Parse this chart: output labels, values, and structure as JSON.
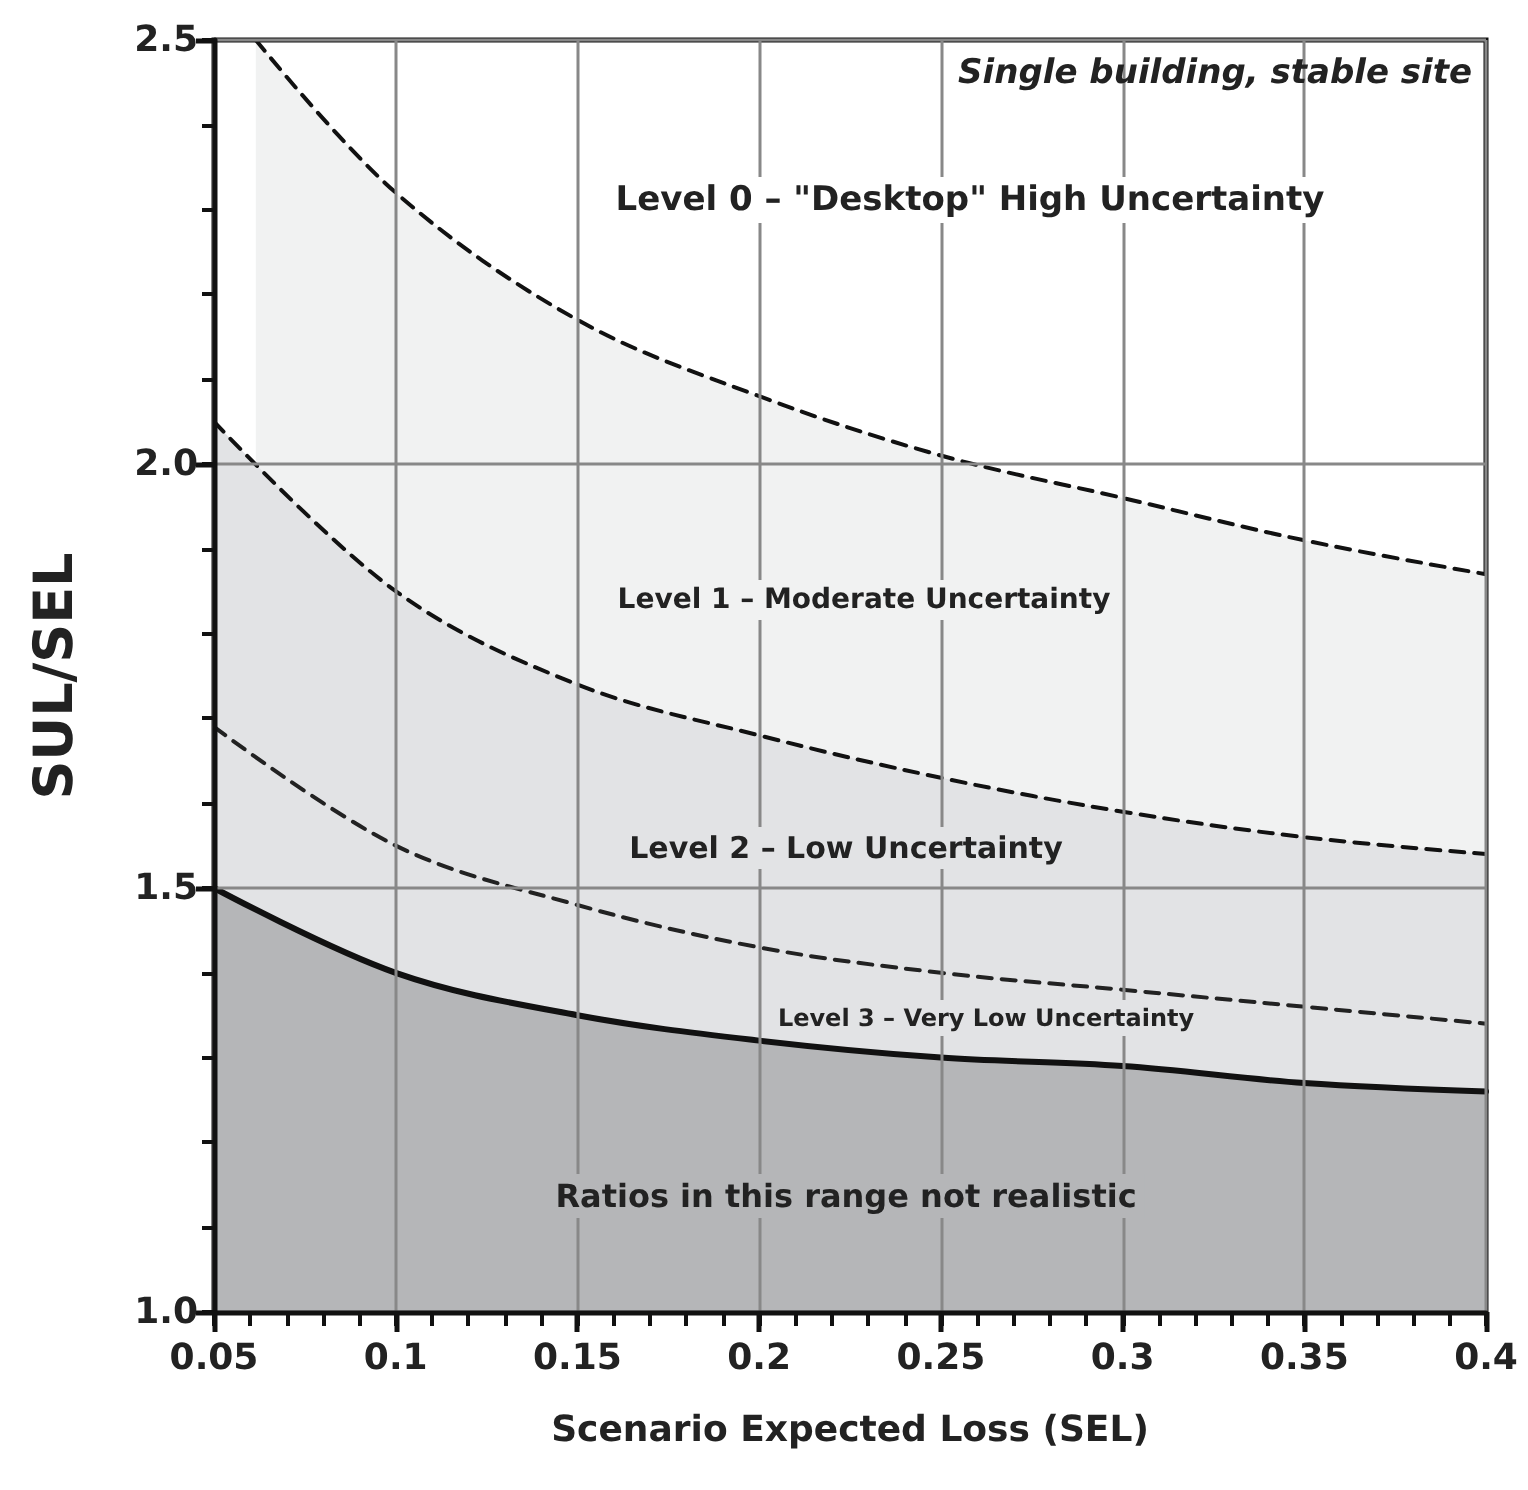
{
  "chart_data": {
    "type": "area",
    "xlabel": "Scenario Expected Loss (SEL)",
    "ylabel": "SUL/SEL",
    "x": [
      0.05,
      0.1,
      0.15,
      0.2,
      0.25,
      0.3,
      0.35,
      0.4
    ],
    "series": [
      {
        "color": "#f1f2f2",
        "line_style": "dashed",
        "x": [
          0.0615,
          0.1,
          0.15,
          0.2,
          0.25,
          0.3,
          0.35,
          0.4
        ],
        "values": [
          2.5,
          2.32,
          2.17,
          2.08,
          2.01,
          1.96,
          1.91,
          1.87
        ]
      },
      {
        "color": "#e2e3e5",
        "line_style": "dashed",
        "values": [
          2.05,
          1.85,
          1.74,
          1.68,
          1.63,
          1.59,
          1.56,
          1.54
        ]
      },
      {
        "type": "line",
        "color": "#222222",
        "line_style": "dashed",
        "values": [
          1.69,
          1.55,
          1.48,
          1.43,
          1.4,
          1.38,
          1.36,
          1.34
        ]
      },
      {
        "color": "#b5b6b8",
        "line_style": "solid",
        "values": [
          1.5,
          1.4,
          1.35,
          1.32,
          1.3,
          1.29,
          1.27,
          1.26
        ]
      }
    ],
    "xlim": [
      0.05,
      0.4
    ],
    "xticks": [
      0.05,
      {
        "value": 0.06,
        "label": null
      },
      {
        "value": 0.07,
        "label": null
      },
      {
        "value": 0.08,
        "label": null
      },
      {
        "value": 0.09,
        "label": null
      },
      0.1,
      {
        "value": 0.11,
        "label": null
      },
      {
        "value": 0.12,
        "label": null
      },
      {
        "value": 0.13,
        "label": null
      },
      {
        "value": 0.14,
        "label": null
      },
      0.15,
      {
        "value": 0.16,
        "label": null
      },
      {
        "value": 0.17,
        "label": null
      },
      {
        "value": 0.18,
        "label": null
      },
      {
        "value": 0.19,
        "label": null
      },
      0.2,
      {
        "value": 0.21,
        "label": null
      },
      {
        "value": 0.22,
        "label": null
      },
      {
        "value": 0.23,
        "label": null
      },
      {
        "value": 0.24,
        "label": null
      },
      0.25,
      {
        "value": 0.26,
        "label": null
      },
      {
        "value": 0.27,
        "label": null
      },
      {
        "value": 0.28,
        "label": null
      },
      {
        "value": 0.29,
        "label": null
      },
      0.3,
      {
        "value": 0.31,
        "label": null
      },
      {
        "value": 0.32,
        "label": null
      },
      {
        "value": 0.33,
        "label": null
      },
      {
        "value": 0.34,
        "label": null
      },
      0.35,
      {
        "value": 0.36,
        "label": null
      },
      {
        "value": 0.37,
        "label": null
      },
      {
        "value": 0.38,
        "label": null
      },
      {
        "value": 0.39,
        "label": null
      },
      0.4
    ],
    "ylim": [
      1.0,
      2.5
    ],
    "yticks": [
      {
        "value": 1,
        "label": "1.0"
      },
      {
        "value": 1.1,
        "label": null
      },
      {
        "value": 1.2,
        "label": null
      },
      {
        "value": 1.3,
        "label": null
      },
      {
        "value": 1.4,
        "label": null
      },
      1.5,
      {
        "value": 1.6,
        "label": null
      },
      {
        "value": 1.7,
        "label": null
      },
      {
        "value": 1.8,
        "label": null
      },
      {
        "value": 1.9,
        "label": null
      },
      {
        "value": 2,
        "label": "2.0"
      },
      {
        "value": 2.1,
        "label": null
      },
      {
        "value": 2.2,
        "label": null
      },
      {
        "value": 2.3,
        "label": null
      },
      {
        "value": 2.4,
        "label": null
      },
      2.5
    ],
    "grid": true,
    "annotations": [
      "Single building, stable site",
      "Level 0 – \"Desktop\" High Uncertainty",
      "Level 1 – Moderate Uncertainty",
      "Level 2 – Low Uncertainty",
      "Level 3 – Very Low Uncertainty",
      "Ratios in this range not realistic"
    ]
  }
}
